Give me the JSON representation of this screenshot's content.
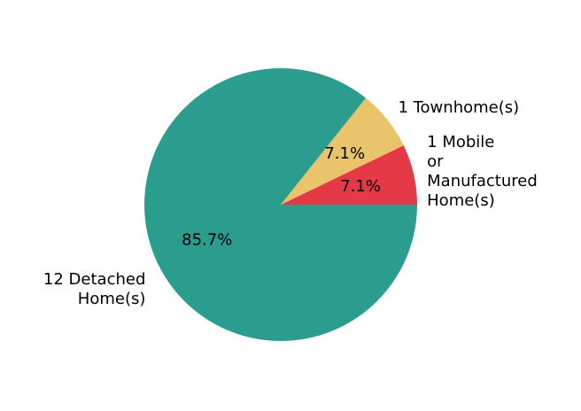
{
  "chart_data": {
    "type": "pie",
    "slices": [
      {
        "label_lines": [
          "1 Mobile",
          "or",
          "Manufactured",
          "Home(s)"
        ],
        "value": 1,
        "percent_label": "7.1%",
        "color": "#e63946"
      },
      {
        "label_lines": [
          "1 Townhome(s)"
        ],
        "value": 1,
        "percent_label": "7.1%",
        "color": "#e9c46a"
      },
      {
        "label_lines": [
          "12 Detached",
          "Home(s)"
        ],
        "value": 12,
        "percent_label": "85.7%",
        "color": "#2a9d8f"
      }
    ],
    "start_angle_deg": 0,
    "direction": "counterclockwise"
  }
}
